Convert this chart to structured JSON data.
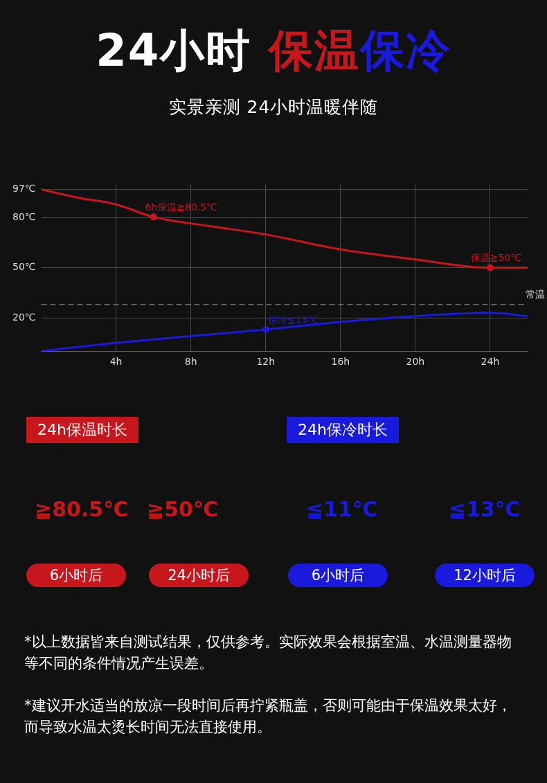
{
  "chart_data": {
    "type": "line",
    "title": "24小时 保温保冷",
    "subtitle": "实景亲测 24小时温暖伴随",
    "x": [
      0,
      2,
      4,
      6,
      9,
      12,
      16,
      20,
      24,
      26
    ],
    "series": [
      {
        "color": "#c8161d",
        "values": [
          97,
          92,
          88,
          80.5,
          75,
          70,
          61,
          55,
          50,
          50
        ]
      },
      {
        "color": "#1a1adc",
        "x": [
          0,
          4,
          8,
          12,
          16,
          20,
          24,
          26
        ],
        "values": [
          0,
          5,
          9,
          13,
          17.5,
          21,
          23,
          21
        ]
      }
    ],
    "xlim": [
      0,
      26
    ],
    "xticks": [
      {
        "value": 4,
        "label": "4h"
      },
      {
        "value": 8,
        "label": "8h"
      },
      {
        "value": 12,
        "label": "12h"
      },
      {
        "value": 16,
        "label": "16h"
      },
      {
        "value": 20,
        "label": "20h"
      },
      {
        "value": 24,
        "label": "24h"
      }
    ],
    "ylim": [
      0,
      100
    ],
    "yticks": [
      {
        "value": 20,
        "label": "20℃"
      },
      {
        "value": 50,
        "label": "50℃"
      },
      {
        "value": 80,
        "label": "80℃"
      },
      {
        "value": 97,
        "label": "97℃"
      }
    ],
    "grid": true,
    "marker": "none",
    "line_style": "solid",
    "legend": false,
    "ref_lines": [
      {
        "axis": "y",
        "value": 28,
        "label": "常温",
        "color": "#9a9a9a",
        "line_style": "dashed"
      }
    ],
    "annotations": [
      {
        "text": "6h保温≧80.5℃",
        "x": 6,
        "y": 80.5
      },
      {
        "text": "保温≧50℃",
        "x": 24,
        "y": 50
      },
      {
        "text": "保冷≦13℃",
        "x": 12,
        "y": 13
      },
      "24h保温时长",
      "24h保冷时长",
      "≧80.5℃",
      "≧50℃",
      "≦11℃",
      "≦13℃",
      "6小时后",
      "24小时后",
      "6小时后",
      "12小时后",
      "*以上数据皆来自测试结果，仅供参考。实际效果会根据室温、水温测量器物等不同的条件情况产生误差。",
      "*建议开水适当的放凉一段时间后再拧紧瓶盖，否则可能由于保温效果太好，而导致水温太烫长时间无法直接使用。"
    ]
  }
}
